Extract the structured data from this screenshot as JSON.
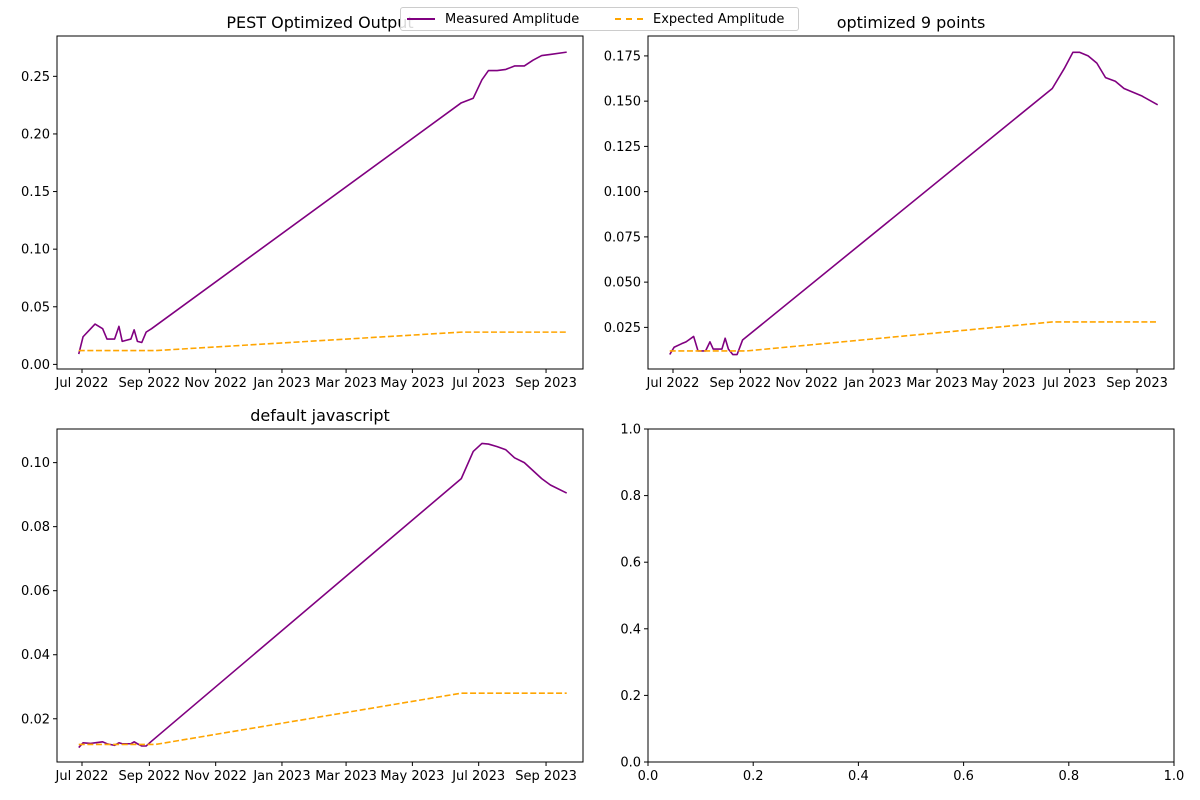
{
  "legend": {
    "items": [
      {
        "label": "Measured Amplitude",
        "color": "#800080",
        "style": "solid"
      },
      {
        "label": "Expected Amplitude",
        "color": "#ffa500",
        "style": "dashed"
      }
    ]
  },
  "chart_data": [
    {
      "type": "line",
      "title": "PEST Optimized Output",
      "x_axis": "date",
      "xlim": [
        "2022-06-08",
        "2023-10-05"
      ],
      "ylim": [
        -0.004,
        0.285
      ],
      "xticks": [
        "2022-07-01",
        "2022-09-01",
        "2022-11-01",
        "2023-01-01",
        "2023-03-01",
        "2023-05-01",
        "2023-07-01",
        "2023-09-01"
      ],
      "xtick_labels": [
        "Jul 2022",
        "Sep 2022",
        "Nov 2022",
        "Jan 2023",
        "Mar 2023",
        "May 2023",
        "Jul 2023",
        "Sep 2023"
      ],
      "yticks": [
        0.0,
        0.05,
        0.1,
        0.15,
        0.2,
        0.25
      ],
      "ytick_labels": [
        "0.00",
        "0.05",
        "0.10",
        "0.15",
        "0.20",
        "0.25"
      ],
      "series": [
        {
          "name": "Measured Amplitude",
          "color": "#800080",
          "style": "solid",
          "x": [
            "2022-06-28",
            "2022-07-02",
            "2022-07-09",
            "2022-07-13",
            "2022-07-20",
            "2022-07-24",
            "2022-07-31",
            "2022-08-04",
            "2022-08-07",
            "2022-08-15",
            "2022-08-18",
            "2022-08-21",
            "2022-08-25",
            "2022-08-29",
            "2022-09-03",
            "2023-06-15",
            "2023-06-26",
            "2023-07-04",
            "2023-07-10",
            "2023-07-18",
            "2023-07-26",
            "2023-08-03",
            "2023-08-12",
            "2023-08-20",
            "2023-08-28",
            "2023-09-05",
            "2023-09-20"
          ],
          "y": [
            0.009,
            0.024,
            0.031,
            0.035,
            0.031,
            0.022,
            0.022,
            0.033,
            0.02,
            0.022,
            0.03,
            0.02,
            0.019,
            0.028,
            0.031,
            0.227,
            0.231,
            0.247,
            0.255,
            0.255,
            0.256,
            0.259,
            0.259,
            0.264,
            0.268,
            0.269,
            0.271
          ]
        },
        {
          "name": "Expected Amplitude",
          "color": "#ffa500",
          "style": "dashed",
          "x": [
            "2022-06-28",
            "2022-07-02",
            "2022-09-07",
            "2023-06-15",
            "2023-09-20"
          ],
          "y": [
            0.012,
            0.012,
            0.012,
            0.028,
            0.028
          ]
        }
      ]
    },
    {
      "type": "line",
      "title": "optimized 9 points",
      "x_axis": "date",
      "xlim": [
        "2022-06-08",
        "2023-10-05"
      ],
      "ylim": [
        0.002,
        0.186
      ],
      "xticks": [
        "2022-07-01",
        "2022-09-01",
        "2022-11-01",
        "2023-01-01",
        "2023-03-01",
        "2023-05-01",
        "2023-07-01",
        "2023-09-01"
      ],
      "xtick_labels": [
        "Jul 2022",
        "Sep 2022",
        "Nov 2022",
        "Jan 2023",
        "Mar 2023",
        "May 2023",
        "Jul 2023",
        "Sep 2023"
      ],
      "yticks": [
        0.025,
        0.05,
        0.075,
        0.1,
        0.125,
        0.15,
        0.175
      ],
      "ytick_labels": [
        "0.025",
        "0.050",
        "0.075",
        "0.100",
        "0.125",
        "0.150",
        "0.175"
      ],
      "series": [
        {
          "name": "Measured Amplitude",
          "color": "#800080",
          "style": "solid",
          "x": [
            "2022-06-28",
            "2022-07-02",
            "2022-07-09",
            "2022-07-13",
            "2022-07-20",
            "2022-07-24",
            "2022-07-31",
            "2022-08-04",
            "2022-08-07",
            "2022-08-15",
            "2022-08-18",
            "2022-08-21",
            "2022-08-25",
            "2022-08-29",
            "2022-09-03",
            "2023-06-15",
            "2023-06-26",
            "2023-07-04",
            "2023-07-10",
            "2023-07-18",
            "2023-07-26",
            "2023-08-03",
            "2023-08-12",
            "2023-08-20",
            "2023-08-28",
            "2023-09-05",
            "2023-09-20"
          ],
          "y": [
            0.01,
            0.014,
            0.016,
            0.017,
            0.02,
            0.012,
            0.012,
            0.017,
            0.013,
            0.013,
            0.019,
            0.013,
            0.01,
            0.01,
            0.018,
            0.157,
            0.168,
            0.177,
            0.177,
            0.175,
            0.171,
            0.163,
            0.161,
            0.157,
            0.155,
            0.153,
            0.148
          ]
        },
        {
          "name": "Expected Amplitude",
          "color": "#ffa500",
          "style": "dashed",
          "x": [
            "2022-06-28",
            "2022-07-02",
            "2022-09-07",
            "2023-06-15",
            "2023-09-20"
          ],
          "y": [
            0.012,
            0.012,
            0.012,
            0.028,
            0.028
          ]
        }
      ]
    },
    {
      "type": "line",
      "title": "default javascript",
      "x_axis": "date",
      "xlim": [
        "2022-06-08",
        "2023-10-05"
      ],
      "ylim": [
        0.0065,
        0.1105
      ],
      "xticks": [
        "2022-07-01",
        "2022-09-01",
        "2022-11-01",
        "2023-01-01",
        "2023-03-01",
        "2023-05-01",
        "2023-07-01",
        "2023-09-01"
      ],
      "xtick_labels": [
        "Jul 2022",
        "Sep 2022",
        "Nov 2022",
        "Jan 2023",
        "Mar 2023",
        "May 2023",
        "Jul 2023",
        "Sep 2023"
      ],
      "yticks": [
        0.02,
        0.04,
        0.06,
        0.08,
        0.1
      ],
      "ytick_labels": [
        "0.02",
        "0.04",
        "0.06",
        "0.08",
        "0.10"
      ],
      "series": [
        {
          "name": "Measured Amplitude",
          "color": "#800080",
          "style": "solid",
          "x": [
            "2022-06-28",
            "2022-07-02",
            "2022-07-09",
            "2022-07-13",
            "2022-07-20",
            "2022-07-24",
            "2022-07-31",
            "2022-08-04",
            "2022-08-07",
            "2022-08-15",
            "2022-08-18",
            "2022-08-21",
            "2022-08-25",
            "2022-08-29",
            "2022-09-03",
            "2023-06-15",
            "2023-06-26",
            "2023-07-04",
            "2023-07-10",
            "2023-07-18",
            "2023-07-26",
            "2023-08-03",
            "2023-08-12",
            "2023-08-20",
            "2023-08-28",
            "2023-09-05",
            "2023-09-20"
          ],
          "y": [
            0.011,
            0.0125,
            0.0123,
            0.0125,
            0.0128,
            0.0122,
            0.0117,
            0.0125,
            0.0122,
            0.0122,
            0.0128,
            0.0122,
            0.0115,
            0.0115,
            0.013,
            0.095,
            0.1035,
            0.106,
            0.1058,
            0.105,
            0.104,
            0.1015,
            0.1,
            0.0975,
            0.095,
            0.093,
            0.0905
          ]
        },
        {
          "name": "Expected Amplitude",
          "color": "#ffa500",
          "style": "dashed",
          "x": [
            "2022-06-28",
            "2022-07-02",
            "2022-09-07",
            "2023-06-15",
            "2023-09-20"
          ],
          "y": [
            0.012,
            0.012,
            0.012,
            0.028,
            0.028
          ]
        }
      ]
    },
    {
      "type": "line",
      "title": "",
      "x_axis": "numeric",
      "xlim": [
        0.0,
        1.0
      ],
      "ylim": [
        0.0,
        1.0
      ],
      "xticks": [
        0.0,
        0.2,
        0.4,
        0.6,
        0.8,
        1.0
      ],
      "xtick_labels": [
        "0.0",
        "0.2",
        "0.4",
        "0.6",
        "0.8",
        "1.0"
      ],
      "yticks": [
        0.0,
        0.2,
        0.4,
        0.6,
        0.8,
        1.0
      ],
      "ytick_labels": [
        "0.0",
        "0.2",
        "0.4",
        "0.6",
        "0.8",
        "1.0"
      ],
      "series": []
    }
  ]
}
